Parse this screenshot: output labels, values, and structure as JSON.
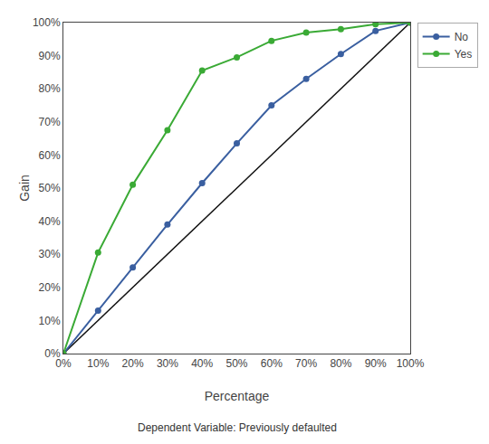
{
  "chart_data": {
    "type": "line",
    "x_label": "Percentage",
    "y_label": "Gain",
    "annotations": [
      "Dependent Variable: Previously defaulted"
    ],
    "series": [
      {
        "name": "No",
        "color": "#3a5fa0",
        "marker": "circle",
        "x": [
          0,
          0.1,
          0.2,
          0.3,
          0.4,
          0.5,
          0.6,
          0.7,
          0.8,
          0.9,
          1.0
        ],
        "values": [
          0,
          0.13,
          0.26,
          0.39,
          0.515,
          0.635,
          0.75,
          0.83,
          0.905,
          0.975,
          1.0
        ]
      },
      {
        "name": "Yes",
        "color": "#3aaa35",
        "marker": "circle",
        "x": [
          0,
          0.1,
          0.2,
          0.3,
          0.4,
          0.5,
          0.6,
          0.7,
          0.8,
          0.9,
          1.0
        ],
        "values": [
          0,
          0.305,
          0.51,
          0.675,
          0.855,
          0.895,
          0.945,
          0.97,
          0.98,
          0.995,
          1.0
        ]
      },
      {
        "color": "#111111",
        "x": [
          0,
          1
        ],
        "values": [
          0,
          1
        ]
      }
    ],
    "xlim": [
      0,
      1.0
    ],
    "ylim": [
      0,
      1.0
    ],
    "xticks": [
      {
        "value": 0,
        "label": "0%"
      },
      {
        "value": 0.1,
        "label": "10%"
      },
      {
        "value": 0.2,
        "label": "20%"
      },
      {
        "value": 0.3,
        "label": "30%"
      },
      {
        "value": 0.4,
        "label": "40%"
      },
      {
        "value": 0.5,
        "label": "50%"
      },
      {
        "value": 0.6,
        "label": "60%"
      },
      {
        "value": 0.7,
        "label": "70%"
      },
      {
        "value": 0.8,
        "label": "80%"
      },
      {
        "value": 0.9,
        "label": "90%"
      },
      {
        "value": 1.0,
        "label": "100%"
      }
    ],
    "yticks": [
      {
        "value": 0,
        "label": "0%"
      },
      {
        "value": 0.1,
        "label": "10%"
      },
      {
        "value": 0.2,
        "label": "20%"
      },
      {
        "value": 0.3,
        "label": "30%"
      },
      {
        "value": 0.4,
        "label": "40%"
      },
      {
        "value": 0.5,
        "label": "50%"
      },
      {
        "value": 0.6,
        "label": "60%"
      },
      {
        "value": 0.7,
        "label": "70%"
      },
      {
        "value": 0.8,
        "label": "80%"
      },
      {
        "value": 0.9,
        "label": "90%"
      },
      {
        "value": 1.0,
        "label": "100%"
      }
    ],
    "grid": false,
    "legend": "right"
  }
}
